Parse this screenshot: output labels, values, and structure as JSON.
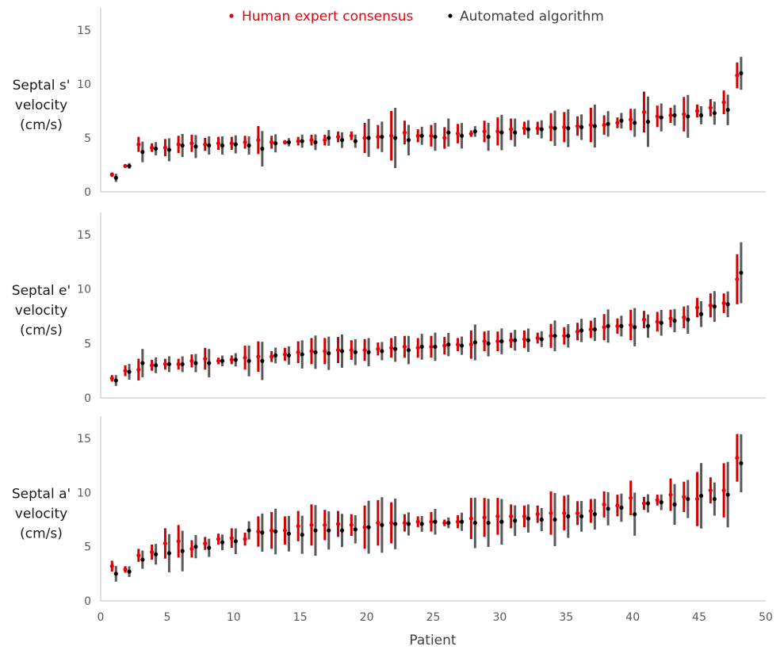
{
  "legend": [
    {
      "label": "Human expert consensus",
      "color": "#e8000b"
    },
    {
      "label": "Automated algorithm",
      "color": "#000000"
    }
  ],
  "xlabel": "Patient",
  "colors": {
    "human": "#e8000b",
    "human_bar": "#d00000",
    "algo": "#000000",
    "algo_bar": "#595959",
    "axis": "#bfbfbf"
  },
  "chart_data": [
    {
      "type": "scatter",
      "title": "",
      "ylabel": [
        "Septal s'",
        "velocity",
        "(cm/s)"
      ],
      "xlabel": "",
      "xlim": [
        0,
        50
      ],
      "ylim": [
        0,
        15
      ],
      "xticks": [
        0,
        5,
        10,
        15,
        20,
        25,
        30,
        35,
        40,
        45,
        50
      ],
      "yticks": [
        0,
        5,
        10,
        15
      ],
      "x": [
        1,
        2,
        3,
        4,
        5,
        6,
        7,
        8,
        9,
        10,
        11,
        12,
        13,
        14,
        15,
        16,
        17,
        18,
        19,
        20,
        21,
        22,
        23,
        24,
        25,
        26,
        27,
        28,
        29,
        30,
        31,
        32,
        33,
        34,
        35,
        36,
        37,
        38,
        39,
        40,
        41,
        42,
        43,
        44,
        45,
        46,
        47,
        48
      ],
      "series": [
        {
          "name": "Human expert consensus",
          "values": [
            1.6,
            2.4,
            4.4,
            4.1,
            4.1,
            4.4,
            4.5,
            4.4,
            4.5,
            4.5,
            4.6,
            4.8,
            4.6,
            4.6,
            4.7,
            4.8,
            4.8,
            5.1,
            5.2,
            5.0,
            5.1,
            5.2,
            5.5,
            5.2,
            5.2,
            5.0,
            5.4,
            5.4,
            5.6,
            5.6,
            5.8,
            5.9,
            5.9,
            6.0,
            6.0,
            6.1,
            6.2,
            6.2,
            6.4,
            6.7,
            7.4,
            7.0,
            7.1,
            7.2,
            7.5,
            7.8,
            8.3,
            10.8
          ],
          "errors": [
            0.2,
            0.1,
            0.7,
            0.4,
            0.8,
            0.8,
            0.8,
            0.6,
            0.6,
            0.6,
            0.6,
            1.3,
            0.6,
            0.2,
            0.4,
            0.5,
            0.5,
            0.5,
            0.4,
            1.4,
            1.1,
            2.3,
            1.1,
            0.6,
            1.0,
            1.0,
            0.9,
            0.3,
            1.0,
            1.3,
            1.0,
            0.6,
            0.6,
            1.3,
            1.4,
            0.9,
            1.6,
            0.9,
            0.5,
            1.0,
            1.9,
            1.0,
            0.7,
            1.6,
            0.6,
            0.8,
            1.1,
            1.2
          ]
        },
        {
          "name": "Automated algorithm",
          "values": [
            1.3,
            2.4,
            3.7,
            4.0,
            3.9,
            4.3,
            4.2,
            4.3,
            4.3,
            4.4,
            4.3,
            4.0,
            4.5,
            4.6,
            4.7,
            4.6,
            5.0,
            4.8,
            4.7,
            5.0,
            5.1,
            5.0,
            4.8,
            5.2,
            5.1,
            5.5,
            5.2,
            5.6,
            5.1,
            5.5,
            5.5,
            5.8,
            5.8,
            5.9,
            5.9,
            6.0,
            6.1,
            6.3,
            6.6,
            6.4,
            6.5,
            6.9,
            7.1,
            7.0,
            7.1,
            7.3,
            7.6,
            11.0
          ]
        }
      ]
    },
    {
      "type": "scatter",
      "title": "",
      "ylabel": [
        "Septal e'",
        "velocity",
        "(cm/s)"
      ],
      "xlabel": "",
      "xlim": [
        0,
        50
      ],
      "ylim": [
        0,
        15
      ],
      "xticks": [
        0,
        5,
        10,
        15,
        20,
        25,
        30,
        35,
        40,
        45,
        50
      ],
      "yticks": [
        0,
        5,
        10,
        15
      ],
      "x": [
        1,
        2,
        3,
        4,
        5,
        6,
        7,
        8,
        9,
        10,
        11,
        12,
        13,
        14,
        15,
        16,
        17,
        18,
        19,
        20,
        21,
        22,
        23,
        24,
        25,
        26,
        27,
        28,
        29,
        30,
        31,
        32,
        33,
        34,
        35,
        36,
        37,
        38,
        39,
        40,
        41,
        42,
        43,
        44,
        45,
        46,
        47,
        48
      ],
      "series": [
        {
          "name": "Human expert consensus",
          "values": [
            1.8,
            2.5,
            2.6,
            3.0,
            3.1,
            3.1,
            3.4,
            3.6,
            3.4,
            3.5,
            3.7,
            3.8,
            3.8,
            4.0,
            4.2,
            4.3,
            4.3,
            4.4,
            4.4,
            4.4,
            4.5,
            4.6,
            4.7,
            4.6,
            4.7,
            4.8,
            4.9,
            4.9,
            5.2,
            5.2,
            5.3,
            5.4,
            5.5,
            5.7,
            5.7,
            6.1,
            6.3,
            6.5,
            6.6,
            6.7,
            7.2,
            7.0,
            7.3,
            7.4,
            8.3,
            8.5,
            8.7,
            10.9
          ],
          "errors": [
            0.3,
            0.5,
            1.0,
            0.5,
            0.5,
            0.5,
            0.6,
            1.0,
            0.3,
            0.4,
            1.1,
            1.4,
            0.5,
            0.6,
            1.0,
            1.2,
            1.2,
            1.2,
            0.9,
            1.0,
            0.6,
            0.9,
            1.0,
            0.9,
            1.0,
            0.8,
            0.6,
            1.3,
            0.9,
            0.9,
            0.7,
            0.8,
            0.5,
            1.1,
            0.8,
            0.8,
            0.8,
            1.2,
            0.7,
            1.4,
            0.8,
            0.9,
            0.8,
            1.0,
            0.9,
            1.1,
            0.9,
            2.3
          ]
        },
        {
          "name": "Automated algorithm",
          "values": [
            1.6,
            2.4,
            3.2,
            3.0,
            3.1,
            3.1,
            3.2,
            3.2,
            3.4,
            3.5,
            3.4,
            3.4,
            3.9,
            3.9,
            4.0,
            4.2,
            4.1,
            4.3,
            4.2,
            4.2,
            4.3,
            4.5,
            4.4,
            4.7,
            4.7,
            4.9,
            4.8,
            5.1,
            5.0,
            5.2,
            5.3,
            5.3,
            5.4,
            5.7,
            5.7,
            6.2,
            6.3,
            6.6,
            6.6,
            6.5,
            6.6,
            6.9,
            7.1,
            7.2,
            7.7,
            8.4,
            8.6,
            11.5
          ]
        }
      ]
    },
    {
      "type": "scatter",
      "title": "",
      "ylabel": [
        "Septal a'",
        "velocity",
        "(cm/s)"
      ],
      "xlabel": "Patient",
      "xlim": [
        0,
        50
      ],
      "ylim": [
        0,
        15
      ],
      "xticks": [
        0,
        5,
        10,
        15,
        20,
        25,
        30,
        35,
        40,
        45,
        50
      ],
      "yticks": [
        0,
        5,
        10,
        15
      ],
      "x": [
        1,
        2,
        3,
        4,
        5,
        6,
        7,
        8,
        9,
        10,
        11,
        12,
        13,
        14,
        15,
        16,
        17,
        18,
        19,
        20,
        21,
        22,
        23,
        24,
        25,
        26,
        27,
        28,
        29,
        30,
        31,
        32,
        33,
        34,
        35,
        36,
        37,
        38,
        39,
        40,
        41,
        42,
        43,
        44,
        45,
        46,
        47,
        48
      ],
      "series": [
        {
          "name": "Human expert consensus",
          "values": [
            3.2,
            2.9,
            4.2,
            4.5,
            5.3,
            5.5,
            4.8,
            5.3,
            5.7,
            5.8,
            5.7,
            6.4,
            6.5,
            6.5,
            6.9,
            7.0,
            7.0,
            7.1,
            7.0,
            6.8,
            7.2,
            7.2,
            7.2,
            7.3,
            7.3,
            7.2,
            7.3,
            7.6,
            7.7,
            7.8,
            7.8,
            7.8,
            8.0,
            8.1,
            8.1,
            8.1,
            8.3,
            8.9,
            8.8,
            9.5,
            9.0,
            9.3,
            9.8,
            9.6,
            9.4,
            10.2,
            10.2,
            13.2
          ],
          "errors": [
            0.5,
            0.3,
            0.6,
            0.7,
            1.4,
            1.5,
            0.8,
            0.6,
            0.5,
            0.9,
            0.6,
            1.4,
            1.7,
            1.3,
            1.4,
            1.9,
            1.4,
            1.2,
            1.0,
            2.0,
            2.1,
            1.9,
            0.8,
            0.5,
            0.9,
            0.3,
            0.6,
            1.9,
            1.8,
            1.7,
            1.1,
            1.0,
            0.8,
            2.0,
            1.6,
            1.1,
            1.1,
            1.2,
            1.0,
            1.6,
            0.6,
            0.5,
            1.5,
            1.4,
            2.5,
            1.2,
            2.5,
            2.2
          ]
        },
        {
          "name": "Automated algorithm",
          "values": [
            2.5,
            2.7,
            3.8,
            4.3,
            4.4,
            4.6,
            5.0,
            4.9,
            5.4,
            5.5,
            6.5,
            6.3,
            6.4,
            6.2,
            6.1,
            6.5,
            6.5,
            6.5,
            6.6,
            6.8,
            7.0,
            7.1,
            7.1,
            7.1,
            7.3,
            7.2,
            7.3,
            7.2,
            7.2,
            7.3,
            7.4,
            7.6,
            7.5,
            7.5,
            7.8,
            7.8,
            8.0,
            8.5,
            8.6,
            8.0,
            9.0,
            9.1,
            8.9,
            9.4,
            9.7,
            9.4,
            9.8,
            12.7
          ]
        }
      ]
    }
  ]
}
